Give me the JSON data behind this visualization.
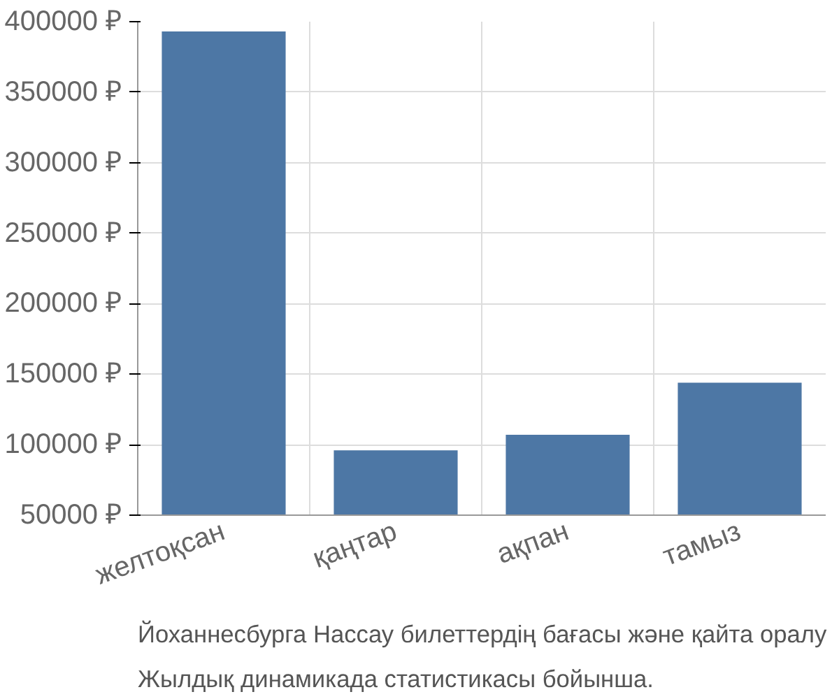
{
  "chart_data": {
    "type": "bar",
    "categories": [
      "желтоқсан",
      "қаңтар",
      "ақпан",
      "тамыз"
    ],
    "values": [
      393000,
      96000,
      107000,
      144000
    ],
    "color": "#4d77a5",
    "ylim": [
      50000,
      400000
    ],
    "yticks": [
      {
        "value": 50000,
        "label": "50000 ₽"
      },
      {
        "value": 100000,
        "label": "100000 ₽"
      },
      {
        "value": 150000,
        "label": "150000 ₽"
      },
      {
        "value": 200000,
        "label": "200000 ₽"
      },
      {
        "value": 250000,
        "label": "250000 ₽"
      },
      {
        "value": 300000,
        "label": "300000 ₽"
      },
      {
        "value": 350000,
        "label": "350000 ₽"
      },
      {
        "value": 400000,
        "label": "400000 ₽"
      }
    ],
    "grid": true,
    "annotations": [
      "Йоханнесбурга Нассау билеттердің бағасы және қайта оралу",
      "Жылдық динамикада статистикасы бойынша."
    ]
  }
}
